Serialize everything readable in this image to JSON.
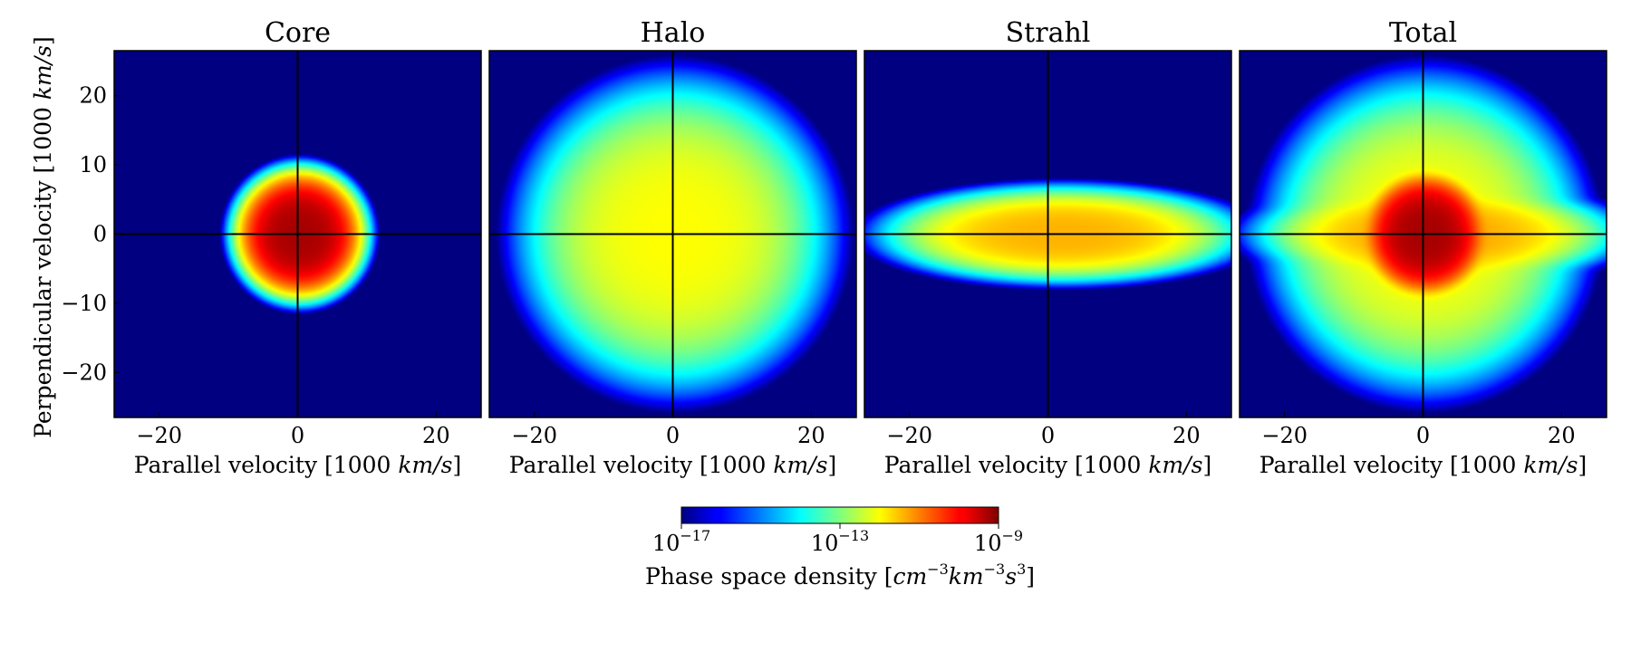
{
  "chart_data": [
    {
      "type": "heatmap",
      "title": "Core",
      "xlabel": {
        "text": "Parallel velocity [1000 ",
        "unit": "km/s",
        "close": "]"
      },
      "ylabel": {
        "text": "Perpendicular velocity [1000 ",
        "unit": "km/s",
        "close": "]"
      },
      "xlim": [
        -26.5,
        26.5
      ],
      "ylim": [
        -26.5,
        26.5
      ],
      "xticks": [
        -20,
        0,
        20
      ],
      "yticks": [
        20,
        10,
        0,
        -10,
        -20
      ],
      "xtick_labels": [
        "−20",
        "0",
        "20"
      ],
      "ytick_labels": [
        "20",
        "10",
        "0",
        "−10",
        "−20"
      ],
      "distribution": {
        "center": [
          0.3,
          0
        ],
        "sigma_parallel": 4.2,
        "sigma_perpendicular": 4.2,
        "log10_peak": -9.3
      }
    },
    {
      "type": "heatmap",
      "title": "Halo",
      "xlabel": {
        "text": "Parallel velocity [1000 ",
        "unit": "km/s",
        "close": "]"
      },
      "xlim": [
        -26.5,
        26.5
      ],
      "ylim": [
        -26.5,
        26.5
      ],
      "xticks": [
        -20,
        0,
        20
      ],
      "xtick_labels": [
        "−20",
        "0",
        "20"
      ],
      "distribution": {
        "center": [
          0.3,
          0
        ],
        "sigma_parallel": 10.5,
        "sigma_perpendicular": 10.5,
        "log10_peak": -12.0
      }
    },
    {
      "type": "heatmap",
      "title": "Strahl",
      "xlabel": {
        "text": "Parallel velocity [1000 ",
        "unit": "km/s",
        "close": "]"
      },
      "xlim": [
        -26.5,
        26.5
      ],
      "ylim": [
        -26.5,
        26.5
      ],
      "xticks": [
        -20,
        0,
        20
      ],
      "xtick_labels": [
        "−20",
        "0",
        "20"
      ],
      "distribution": {
        "center": [
          2.0,
          0
        ],
        "sigma_parallel": 12.0,
        "sigma_perpendicular": 3.2,
        "log10_peak": -11.4
      }
    },
    {
      "type": "heatmap",
      "title": "Total",
      "xlabel": {
        "text": "Parallel velocity [1000 ",
        "unit": "km/s",
        "close": "]"
      },
      "xlim": [
        -26.5,
        26.5
      ],
      "ylim": [
        -26.5,
        26.5
      ],
      "xticks": [
        -20,
        0,
        20
      ],
      "xtick_labels": [
        "−20",
        "0",
        "20"
      ],
      "distribution": "sum of Core, Halo and Strahl"
    }
  ],
  "colorbar": {
    "colormap": "jet",
    "scale": "log",
    "range_log10": [
      -17,
      -9
    ],
    "ticks": [
      {
        "base": "10",
        "exp": "−17",
        "value": -17
      },
      {
        "base": "10",
        "exp": "−13",
        "value": -13
      },
      {
        "base": "10",
        "exp": "−9",
        "value": -9
      }
    ],
    "label": {
      "text": "Phase space density [",
      "cm": "cm",
      "cm_exp": "−3",
      "km": "km",
      "km_exp": "−3",
      "s": "s",
      "s_exp": "3",
      "close": "]"
    }
  }
}
